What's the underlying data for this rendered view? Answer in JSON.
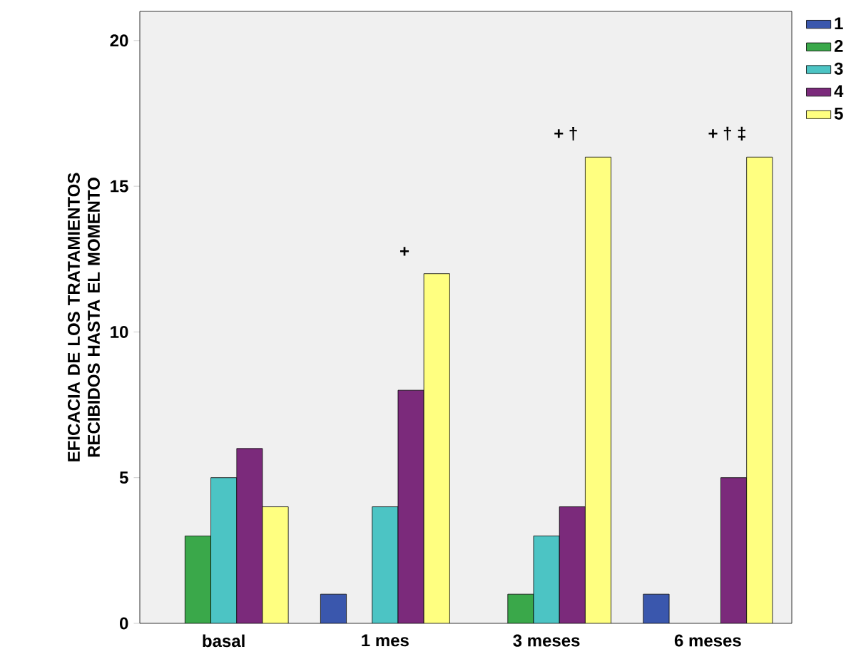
{
  "chart_data": {
    "type": "bar",
    "ylabel": "EFICACIA DE LOS TRATAMIENTOS RECIBIDOS HASTA EL MOMENTO",
    "categories": [
      "basal",
      "1 mes",
      "3 meses",
      "6 meses"
    ],
    "series": [
      {
        "name": "1",
        "color": "#3a57ad",
        "values": [
          null,
          1,
          null,
          1
        ]
      },
      {
        "name": "2",
        "color": "#3aa84a",
        "values": [
          3,
          null,
          1,
          null
        ]
      },
      {
        "name": "3",
        "color": "#4cc4c4",
        "values": [
          5,
          4,
          3,
          null
        ]
      },
      {
        "name": "4",
        "color": "#7b2a7b",
        "values": [
          6,
          8,
          4,
          5
        ]
      },
      {
        "name": "5",
        "color": "#ffff80",
        "values": [
          4,
          12,
          16,
          16
        ]
      }
    ],
    "ylim": [
      0,
      21
    ],
    "yticks": [
      0,
      5,
      10,
      15,
      20
    ],
    "grid": false,
    "legend": "top right",
    "annotations": [
      "+",
      "+ †",
      "+ † ‡"
    ]
  }
}
